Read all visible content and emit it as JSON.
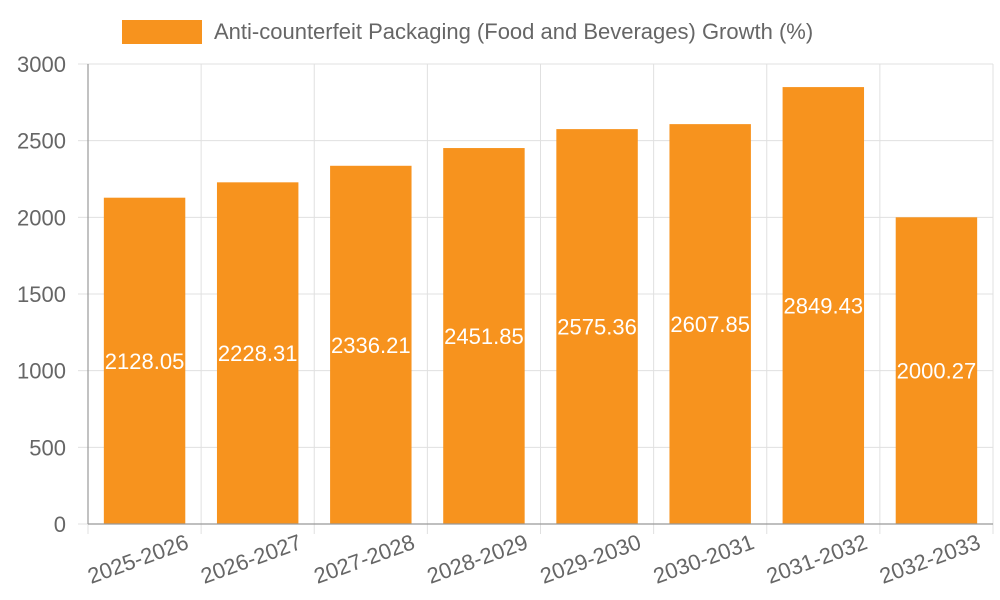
{
  "chart_data": {
    "type": "bar",
    "legend": {
      "label": "Anti-counterfeit Packaging (Food and Beverages) Growth (%)",
      "position": "top"
    },
    "categories": [
      "2025-2026",
      "2026-2027",
      "2027-2028",
      "2028-2029",
      "2029-2030",
      "2030-2031",
      "2031-2032",
      "2032-2033"
    ],
    "series": [
      {
        "name": "Anti-counterfeit Packaging (Food and Beverages) Growth (%)",
        "values": [
          2128.05,
          2228.31,
          2336.21,
          2451.85,
          2575.36,
          2607.85,
          2849.43,
          2000.27
        ]
      }
    ],
    "data_labels": [
      "2128.05",
      "2228.31",
      "2336.21",
      "2451.85",
      "2575.36",
      "2607.85",
      "2849.43",
      "2000.27"
    ],
    "y_ticks": [
      "0",
      "500",
      "1000",
      "1500",
      "2000",
      "2500",
      "3000"
    ],
    "ylim": [
      0,
      3000
    ],
    "grid": true,
    "colors": {
      "bar": "#f7931e"
    }
  }
}
